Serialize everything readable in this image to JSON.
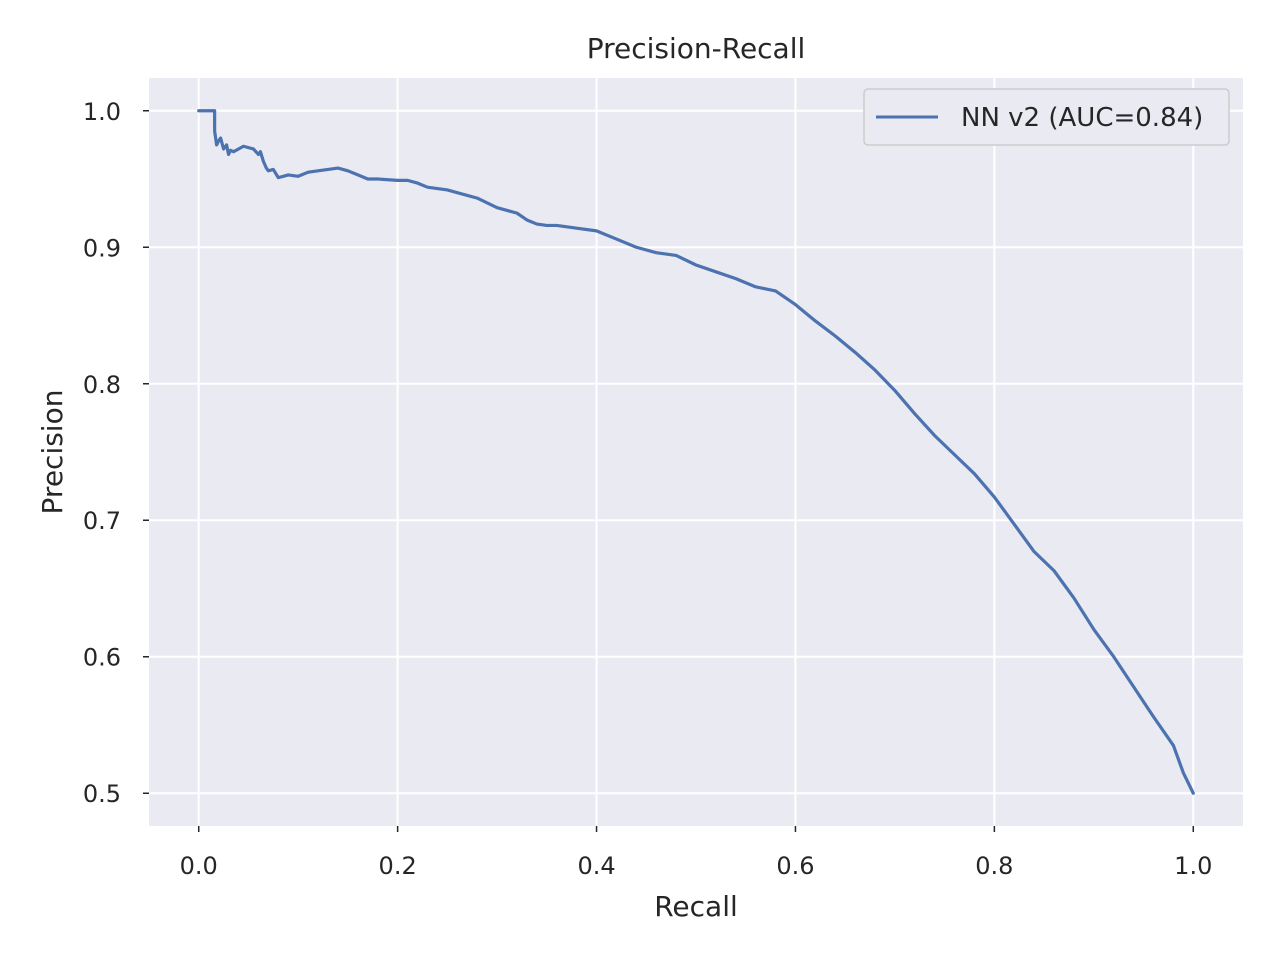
{
  "chart_data": {
    "type": "line",
    "title": "Precision-Recall",
    "xlabel": "Recall",
    "ylabel": "Precision",
    "xlim": [
      -0.05,
      1.05
    ],
    "ylim": [
      0.476,
      1.024
    ],
    "xticks": [
      0.0,
      0.2,
      0.4,
      0.6,
      0.8,
      1.0
    ],
    "xtick_labels": [
      "0.0",
      "0.2",
      "0.4",
      "0.6",
      "0.8",
      "1.0"
    ],
    "yticks": [
      0.5,
      0.6,
      0.7,
      0.8,
      0.9,
      1.0
    ],
    "ytick_labels": [
      "0.5",
      "0.6",
      "0.7",
      "0.8",
      "0.9",
      "1.0"
    ],
    "grid": true,
    "legend_position": "top-right",
    "series": [
      {
        "name": "NN v2 (AUC=0.84)",
        "color": "#4c72b0",
        "x": [
          0.0,
          0.016,
          0.016,
          0.018,
          0.02,
          0.022,
          0.025,
          0.028,
          0.03,
          0.032,
          0.035,
          0.04,
          0.045,
          0.05,
          0.055,
          0.06,
          0.062,
          0.065,
          0.068,
          0.07,
          0.075,
          0.08,
          0.085,
          0.09,
          0.1,
          0.11,
          0.12,
          0.13,
          0.14,
          0.15,
          0.16,
          0.17,
          0.18,
          0.2,
          0.21,
          0.22,
          0.23,
          0.25,
          0.26,
          0.28,
          0.3,
          0.32,
          0.33,
          0.34,
          0.35,
          0.36,
          0.38,
          0.4,
          0.42,
          0.44,
          0.46,
          0.48,
          0.5,
          0.52,
          0.54,
          0.56,
          0.58,
          0.6,
          0.62,
          0.64,
          0.66,
          0.68,
          0.7,
          0.72,
          0.74,
          0.76,
          0.78,
          0.8,
          0.82,
          0.84,
          0.86,
          0.88,
          0.9,
          0.92,
          0.94,
          0.96,
          0.98,
          0.99,
          1.0
        ],
        "y": [
          1.0,
          1.0,
          0.985,
          0.975,
          0.978,
          0.98,
          0.972,
          0.975,
          0.968,
          0.971,
          0.97,
          0.972,
          0.974,
          0.973,
          0.972,
          0.968,
          0.97,
          0.963,
          0.958,
          0.956,
          0.957,
          0.951,
          0.952,
          0.953,
          0.952,
          0.955,
          0.956,
          0.957,
          0.958,
          0.956,
          0.953,
          0.95,
          0.95,
          0.949,
          0.949,
          0.947,
          0.944,
          0.942,
          0.94,
          0.936,
          0.929,
          0.925,
          0.92,
          0.917,
          0.916,
          0.916,
          0.914,
          0.912,
          0.906,
          0.9,
          0.896,
          0.894,
          0.887,
          0.882,
          0.877,
          0.871,
          0.868,
          0.858,
          0.846,
          0.835,
          0.823,
          0.81,
          0.795,
          0.778,
          0.762,
          0.748,
          0.734,
          0.717,
          0.697,
          0.677,
          0.663,
          0.643,
          0.62,
          0.6,
          0.578,
          0.556,
          0.535,
          0.515,
          0.5
        ]
      }
    ]
  }
}
